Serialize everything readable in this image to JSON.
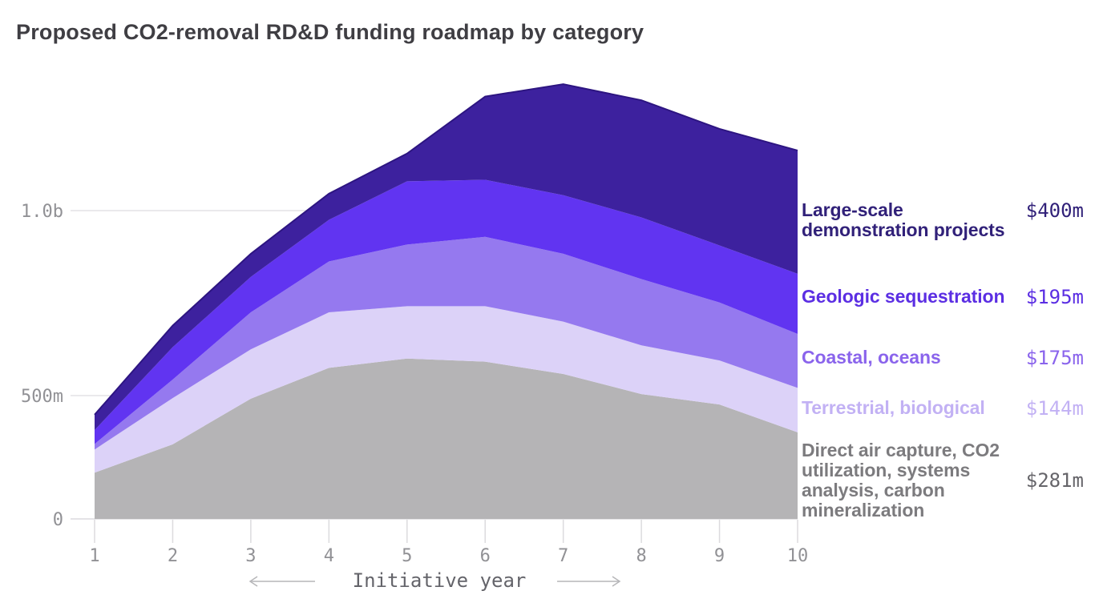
{
  "title": "Proposed CO2-removal RD&D funding roadmap by category",
  "colors": {
    "background": "#ffffff",
    "title_text": "#3f3e43",
    "axis_text": "#919195",
    "axis_caption_text": "#64646a",
    "gridline": "#e3e2e5",
    "baseline": "#dbdade",
    "tick": "#dcdbde",
    "arrow": "#b6b6b9",
    "area_top_stroke": "#2d1581"
  },
  "chart_data": {
    "type": "area",
    "stacked": true,
    "title": "Proposed CO2-removal RD&D funding roadmap by category",
    "x": [
      1,
      2,
      3,
      4,
      5,
      6,
      7,
      8,
      9,
      10
    ],
    "xlabel": "Initiative year",
    "ylabel": "",
    "ylim": [
      0,
      1430
    ],
    "grid": true,
    "legend_position": "right",
    "y_ticks": [
      {
        "label": "1.0b",
        "value": 1000
      },
      {
        "label": "500m",
        "value": 500
      },
      {
        "label": "0",
        "value": 0
      }
    ],
    "units": "million dollars per year",
    "series": [
      {
        "name": "Direct air capture, CO2 utilization, systems analysis, carbon mineralization",
        "color": "#b5b4b6",
        "label_color": "#7c7b7e",
        "value_color": "#66656a",
        "value_label": "$281m",
        "final_value": 281,
        "values": [
          150,
          242,
          390,
          490,
          520,
          510,
          470,
          405,
          371,
          281
        ]
      },
      {
        "name": "Terrestrial, biological",
        "color": "#dcd2f8",
        "label_color": "#c2b1f4",
        "value_color": "#c2b1f4",
        "value_label": "$144m",
        "final_value": 144,
        "values": [
          75,
          150,
          160,
          180,
          170,
          180,
          170,
          158,
          143,
          144
        ]
      },
      {
        "name": "Coastal, oceans",
        "color": "#9579ef",
        "label_color": "#8a64ec",
        "value_color": "#8a64ec",
        "value_label": "$175m",
        "final_value": 175,
        "values": [
          18,
          60,
          120,
          165,
          200,
          225,
          220,
          215,
          188,
          175
        ]
      },
      {
        "name": "Geologic sequestration",
        "color": "#6134f1",
        "label_color": "#5b2ee3",
        "value_color": "#5b2ee3",
        "value_label": "$195m",
        "final_value": 195,
        "values": [
          45,
          105,
          115,
          135,
          205,
          185,
          190,
          200,
          185,
          195
        ]
      },
      {
        "name": "Large-scale demonstration projects",
        "color": "#3d219e",
        "label_color": "#312179",
        "value_color": "#312179",
        "value_label": "$400m",
        "final_value": 400,
        "values": [
          50,
          70,
          75,
          85,
          90,
          270,
          360,
          380,
          378,
          400
        ]
      }
    ]
  }
}
